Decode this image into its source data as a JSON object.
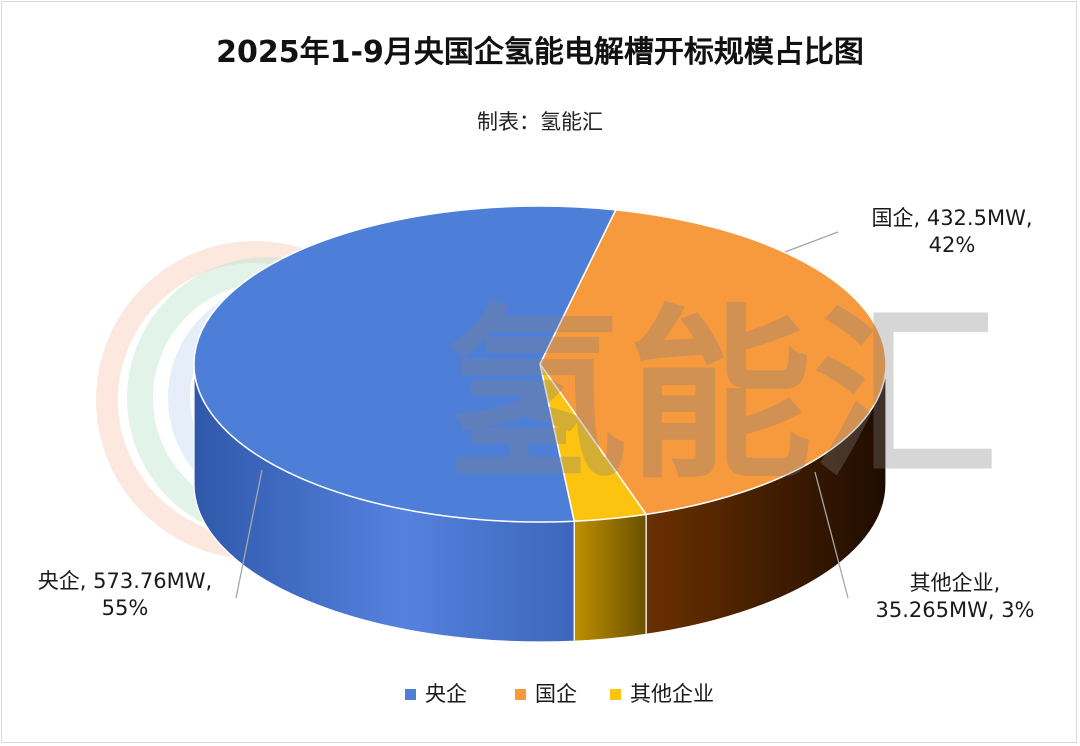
{
  "chart_data": {
    "type": "pie",
    "title": "2025年1-9月央国企氢能电解槽开标规模占比图",
    "subtitle": "制表：氢能汇",
    "watermark": "氢能汇",
    "unit": "MW",
    "legend_position": "bottom",
    "slices": [
      {
        "name": "央企",
        "value": 573.76,
        "percent": 55,
        "color": "#4e7fd8",
        "label_line1": "央企, 573.76MW,",
        "label_line2": "55%"
      },
      {
        "name": "国企",
        "value": 432.5,
        "percent": 42,
        "color": "#f79a3e",
        "label_line1": "国企, 432.5MW,",
        "label_line2": "42%"
      },
      {
        "name": "其他企业",
        "value": 35.265,
        "percent": 3,
        "color": "#fcc411",
        "label_line1": "其他企业,",
        "label_line2": "35.265MW, 3%"
      }
    ]
  }
}
